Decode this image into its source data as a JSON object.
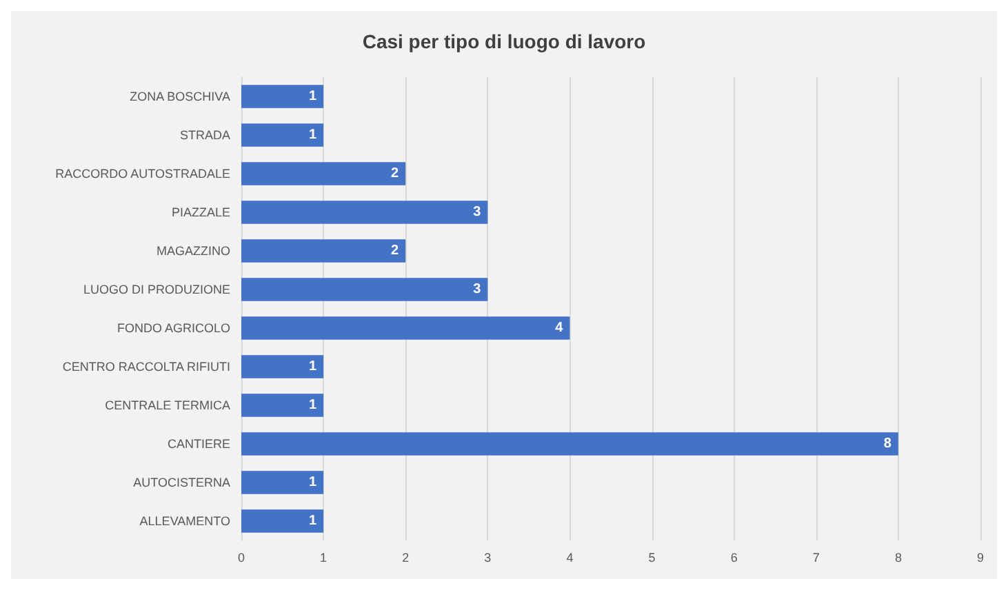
{
  "chart_data": {
    "type": "bar",
    "orientation": "horizontal",
    "title": "Casi per tipo di luogo di lavoro",
    "categories": [
      "ZONA BOSCHIVA",
      "STRADA",
      "RACCORDO AUTOSTRADALE",
      "PIAZZALE",
      "MAGAZZINO",
      "LUOGO DI PRODUZIONE",
      "FONDO AGRICOLO",
      "CENTRO RACCOLTA RIFIUTI",
      "CENTRALE TERMICA",
      "CANTIERE",
      "AUTOCISTERNA",
      "ALLEVAMENTO"
    ],
    "values": [
      1,
      1,
      2,
      3,
      2,
      3,
      4,
      1,
      1,
      8,
      1,
      1
    ],
    "color": "#4472c4",
    "xlim": [
      0,
      9
    ],
    "xticks": [
      0,
      1,
      2,
      3,
      4,
      5,
      6,
      7,
      8,
      9
    ],
    "grid": "x",
    "data_labels": true
  }
}
